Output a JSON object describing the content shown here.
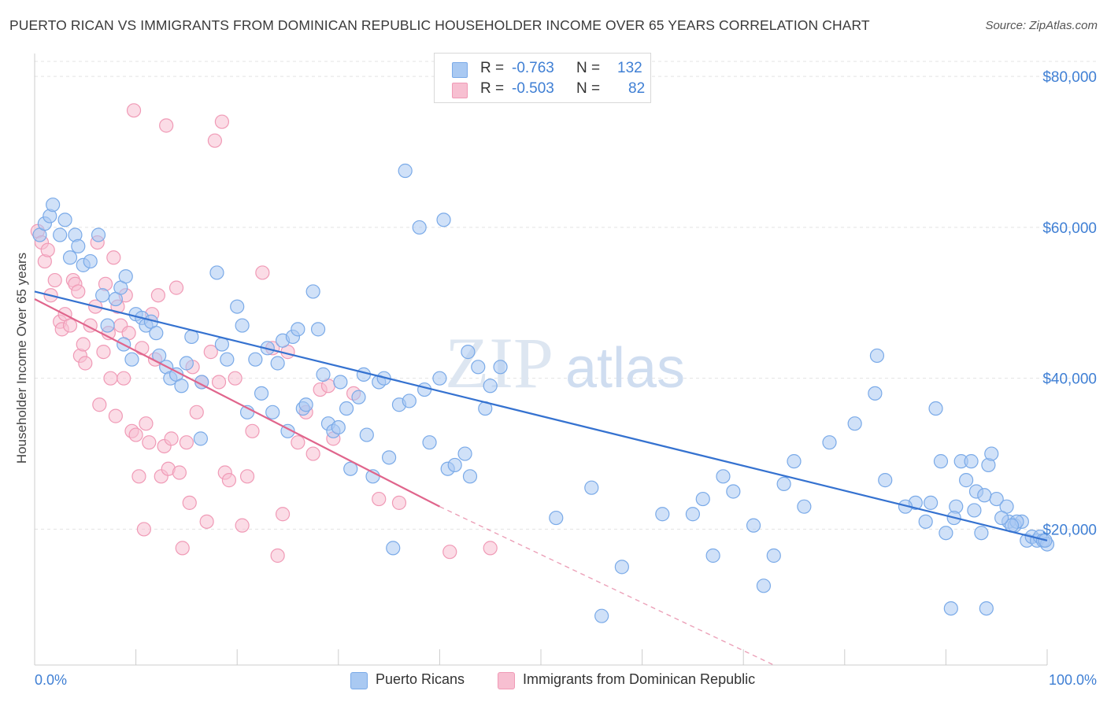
{
  "title": "PUERTO RICAN VS IMMIGRANTS FROM DOMINICAN REPUBLIC HOUSEHOLDER INCOME OVER 65 YEARS CORRELATION CHART",
  "source": "Source: ZipAtlas.com",
  "watermark": {
    "zip": "ZIP",
    "atlas": "atlas"
  },
  "legend": {
    "rows": [
      {
        "r_label": "R =",
        "r_value": "-0.763",
        "n_label": "N =",
        "n_value": "132"
      },
      {
        "r_label": "R =",
        "r_value": "-0.503",
        "n_label": "N =",
        "n_value": "82"
      }
    ]
  },
  "chart_data": {
    "type": "scatter",
    "ylabel": "Householder Income Over 65 years",
    "xlim": [
      0,
      100
    ],
    "ylim": [
      2000,
      82000
    ],
    "x_tick_labels": [
      "0.0%",
      "100.0%"
    ],
    "y_ticks": [
      20000,
      40000,
      60000,
      80000
    ],
    "y_tick_labels": [
      "$20,000",
      "$40,000",
      "$60,000",
      "$80,000"
    ],
    "grid": true,
    "legend_placement": "top-center",
    "series": [
      {
        "name": "Puerto Ricans",
        "color": "#7aaae8",
        "fill": "#a9c9f2",
        "line_color": "#3572d0",
        "trend": {
          "x0": 0,
          "y0": 51500,
          "x1": 100,
          "y1": 18500
        },
        "points": [
          [
            0.5,
            59000
          ],
          [
            1,
            60500
          ],
          [
            1.5,
            61500
          ],
          [
            1.8,
            63000
          ],
          [
            2.5,
            59000
          ],
          [
            3,
            61000
          ],
          [
            3.5,
            56000
          ],
          [
            4,
            59000
          ],
          [
            4.3,
            57500
          ],
          [
            4.8,
            55000
          ],
          [
            5.5,
            55500
          ],
          [
            6.3,
            59000
          ],
          [
            6.7,
            51000
          ],
          [
            7.2,
            47000
          ],
          [
            8,
            50500
          ],
          [
            8.5,
            52000
          ],
          [
            8.8,
            44500
          ],
          [
            9,
            53500
          ],
          [
            9.6,
            42500
          ],
          [
            10,
            48500
          ],
          [
            10.6,
            48000
          ],
          [
            11,
            47000
          ],
          [
            11.5,
            47500
          ],
          [
            12,
            46000
          ],
          [
            12.3,
            43000
          ],
          [
            13,
            41500
          ],
          [
            13.4,
            40000
          ],
          [
            14,
            40500
          ],
          [
            14.5,
            39000
          ],
          [
            15,
            42000
          ],
          [
            15.5,
            45500
          ],
          [
            16.4,
            32000
          ],
          [
            16.5,
            39500
          ],
          [
            18,
            54000
          ],
          [
            18.5,
            44500
          ],
          [
            19,
            42500
          ],
          [
            20,
            49500
          ],
          [
            20.5,
            47000
          ],
          [
            21,
            35500
          ],
          [
            21.8,
            42500
          ],
          [
            22.4,
            38000
          ],
          [
            23,
            44000
          ],
          [
            23.5,
            35500
          ],
          [
            24,
            42000
          ],
          [
            24.5,
            45000
          ],
          [
            25,
            33000
          ],
          [
            25.5,
            45500
          ],
          [
            26,
            46500
          ],
          [
            26.5,
            36000
          ],
          [
            26.8,
            36500
          ],
          [
            27.5,
            51500
          ],
          [
            28,
            46500
          ],
          [
            28.5,
            40500
          ],
          [
            29,
            34000
          ],
          [
            29.5,
            33000
          ],
          [
            30,
            33500
          ],
          [
            30.2,
            39500
          ],
          [
            30.8,
            36000
          ],
          [
            31.2,
            28000
          ],
          [
            32,
            37500
          ],
          [
            32.5,
            40500
          ],
          [
            32.8,
            32500
          ],
          [
            33.4,
            27000
          ],
          [
            34,
            39500
          ],
          [
            34.5,
            40000
          ],
          [
            35,
            29500
          ],
          [
            35.4,
            17500
          ],
          [
            36,
            36500
          ],
          [
            36.6,
            67500
          ],
          [
            37,
            37000
          ],
          [
            38,
            60000
          ],
          [
            38.5,
            38500
          ],
          [
            39,
            31500
          ],
          [
            40,
            40000
          ],
          [
            40.4,
            61000
          ],
          [
            40.8,
            28000
          ],
          [
            41.5,
            28500
          ],
          [
            42.5,
            30000
          ],
          [
            42.8,
            43500
          ],
          [
            43,
            27000
          ],
          [
            43.8,
            41500
          ],
          [
            44.5,
            36000
          ],
          [
            45,
            39000
          ],
          [
            46,
            41500
          ],
          [
            51.5,
            21500
          ],
          [
            56,
            8500
          ],
          [
            58,
            15000
          ],
          [
            65,
            22000
          ],
          [
            67,
            16500
          ],
          [
            68,
            27000
          ],
          [
            69,
            25000
          ],
          [
            72,
            12500
          ],
          [
            73,
            16500
          ],
          [
            74,
            26000
          ],
          [
            76,
            23000
          ],
          [
            78.5,
            31500
          ],
          [
            81,
            34000
          ],
          [
            83,
            38000
          ],
          [
            83.2,
            43000
          ],
          [
            87,
            23500
          ],
          [
            88,
            21000
          ],
          [
            89,
            36000
          ],
          [
            89.5,
            29000
          ],
          [
            90,
            19500
          ],
          [
            90.5,
            9500
          ],
          [
            91,
            23000
          ],
          [
            91.5,
            29000
          ],
          [
            92,
            26500
          ],
          [
            92.5,
            29000
          ],
          [
            93,
            25000
          ],
          [
            93.5,
            19500
          ],
          [
            94,
            9500
          ],
          [
            94.2,
            28500
          ],
          [
            94.5,
            30000
          ],
          [
            95,
            24000
          ],
          [
            96,
            23000
          ],
          [
            96.2,
            21000
          ],
          [
            96.8,
            20500
          ],
          [
            97.5,
            21000
          ],
          [
            98,
            18500
          ],
          [
            98.5,
            19000
          ],
          [
            99,
            18500
          ],
          [
            99.3,
            19000
          ],
          [
            99.6,
            18500
          ],
          [
            100,
            18000
          ],
          [
            99.8,
            18500
          ],
          [
            97,
            21000
          ],
          [
            96.5,
            20500
          ],
          [
            95.5,
            21500
          ],
          [
            93.8,
            24500
          ],
          [
            92.8,
            22500
          ],
          [
            90.8,
            21500
          ],
          [
            88.5,
            23500
          ],
          [
            86,
            23000
          ],
          [
            84,
            26500
          ],
          [
            75,
            29000
          ],
          [
            71,
            20500
          ],
          [
            66,
            24000
          ],
          [
            62,
            22000
          ],
          [
            55,
            25500
          ]
        ]
      },
      {
        "name": "Immigrants from Dominican Republic",
        "color": "#f09ab6",
        "fill": "#f7bfd1",
        "line_color": "#e0658c",
        "trend": {
          "x0": 0,
          "y0": 50500,
          "x1": 40,
          "y1": 23000
        },
        "trend_dashed": {
          "x0": 40,
          "y0": 23000,
          "x1": 73,
          "y1": 2000
        },
        "points": [
          [
            0.3,
            59500
          ],
          [
            0.7,
            58000
          ],
          [
            1,
            55500
          ],
          [
            1.3,
            57000
          ],
          [
            1.6,
            51000
          ],
          [
            2,
            53000
          ],
          [
            2.5,
            47500
          ],
          [
            2.7,
            46500
          ],
          [
            3,
            48500
          ],
          [
            3.5,
            47000
          ],
          [
            3.8,
            53000
          ],
          [
            4,
            52500
          ],
          [
            4.3,
            51500
          ],
          [
            4.5,
            43000
          ],
          [
            4.8,
            44500
          ],
          [
            5,
            42000
          ],
          [
            5.5,
            47000
          ],
          [
            6,
            49500
          ],
          [
            6.2,
            58000
          ],
          [
            6.4,
            36500
          ],
          [
            6.8,
            43500
          ],
          [
            7,
            52500
          ],
          [
            7.3,
            46000
          ],
          [
            7.5,
            40000
          ],
          [
            7.8,
            56000
          ],
          [
            8,
            35000
          ],
          [
            8.2,
            49500
          ],
          [
            8.5,
            47000
          ],
          [
            8.8,
            40000
          ],
          [
            9,
            51000
          ],
          [
            9.3,
            46000
          ],
          [
            9.6,
            33000
          ],
          [
            9.8,
            75500
          ],
          [
            10,
            32500
          ],
          [
            10.3,
            27000
          ],
          [
            10.6,
            44000
          ],
          [
            10.8,
            20000
          ],
          [
            11,
            34000
          ],
          [
            11.3,
            31500
          ],
          [
            11.6,
            48500
          ],
          [
            11.9,
            42500
          ],
          [
            12.2,
            51000
          ],
          [
            12.5,
            27000
          ],
          [
            12.8,
            31000
          ],
          [
            13,
            73500
          ],
          [
            13.2,
            28000
          ],
          [
            13.5,
            32000
          ],
          [
            14,
            52000
          ],
          [
            14.3,
            27500
          ],
          [
            14.6,
            17500
          ],
          [
            15,
            31500
          ],
          [
            15.3,
            23500
          ],
          [
            15.6,
            41500
          ],
          [
            16,
            35500
          ],
          [
            16.5,
            39500
          ],
          [
            17,
            21000
          ],
          [
            17.4,
            43500
          ],
          [
            17.8,
            71500
          ],
          [
            18.2,
            39500
          ],
          [
            18.5,
            74000
          ],
          [
            18.8,
            27500
          ],
          [
            19.2,
            26500
          ],
          [
            19.8,
            40000
          ],
          [
            20.5,
            20500
          ],
          [
            21,
            27000
          ],
          [
            21.5,
            33000
          ],
          [
            22.5,
            54000
          ],
          [
            23.5,
            44000
          ],
          [
            24,
            16500
          ],
          [
            24.5,
            22000
          ],
          [
            25,
            43500
          ],
          [
            26,
            31500
          ],
          [
            26.8,
            35500
          ],
          [
            27.5,
            30000
          ],
          [
            28.2,
            38500
          ],
          [
            29,
            39000
          ],
          [
            29.5,
            32000
          ],
          [
            31.5,
            38000
          ],
          [
            34,
            24000
          ],
          [
            36,
            23500
          ],
          [
            41,
            17000
          ],
          [
            45,
            17500
          ]
        ]
      }
    ]
  }
}
